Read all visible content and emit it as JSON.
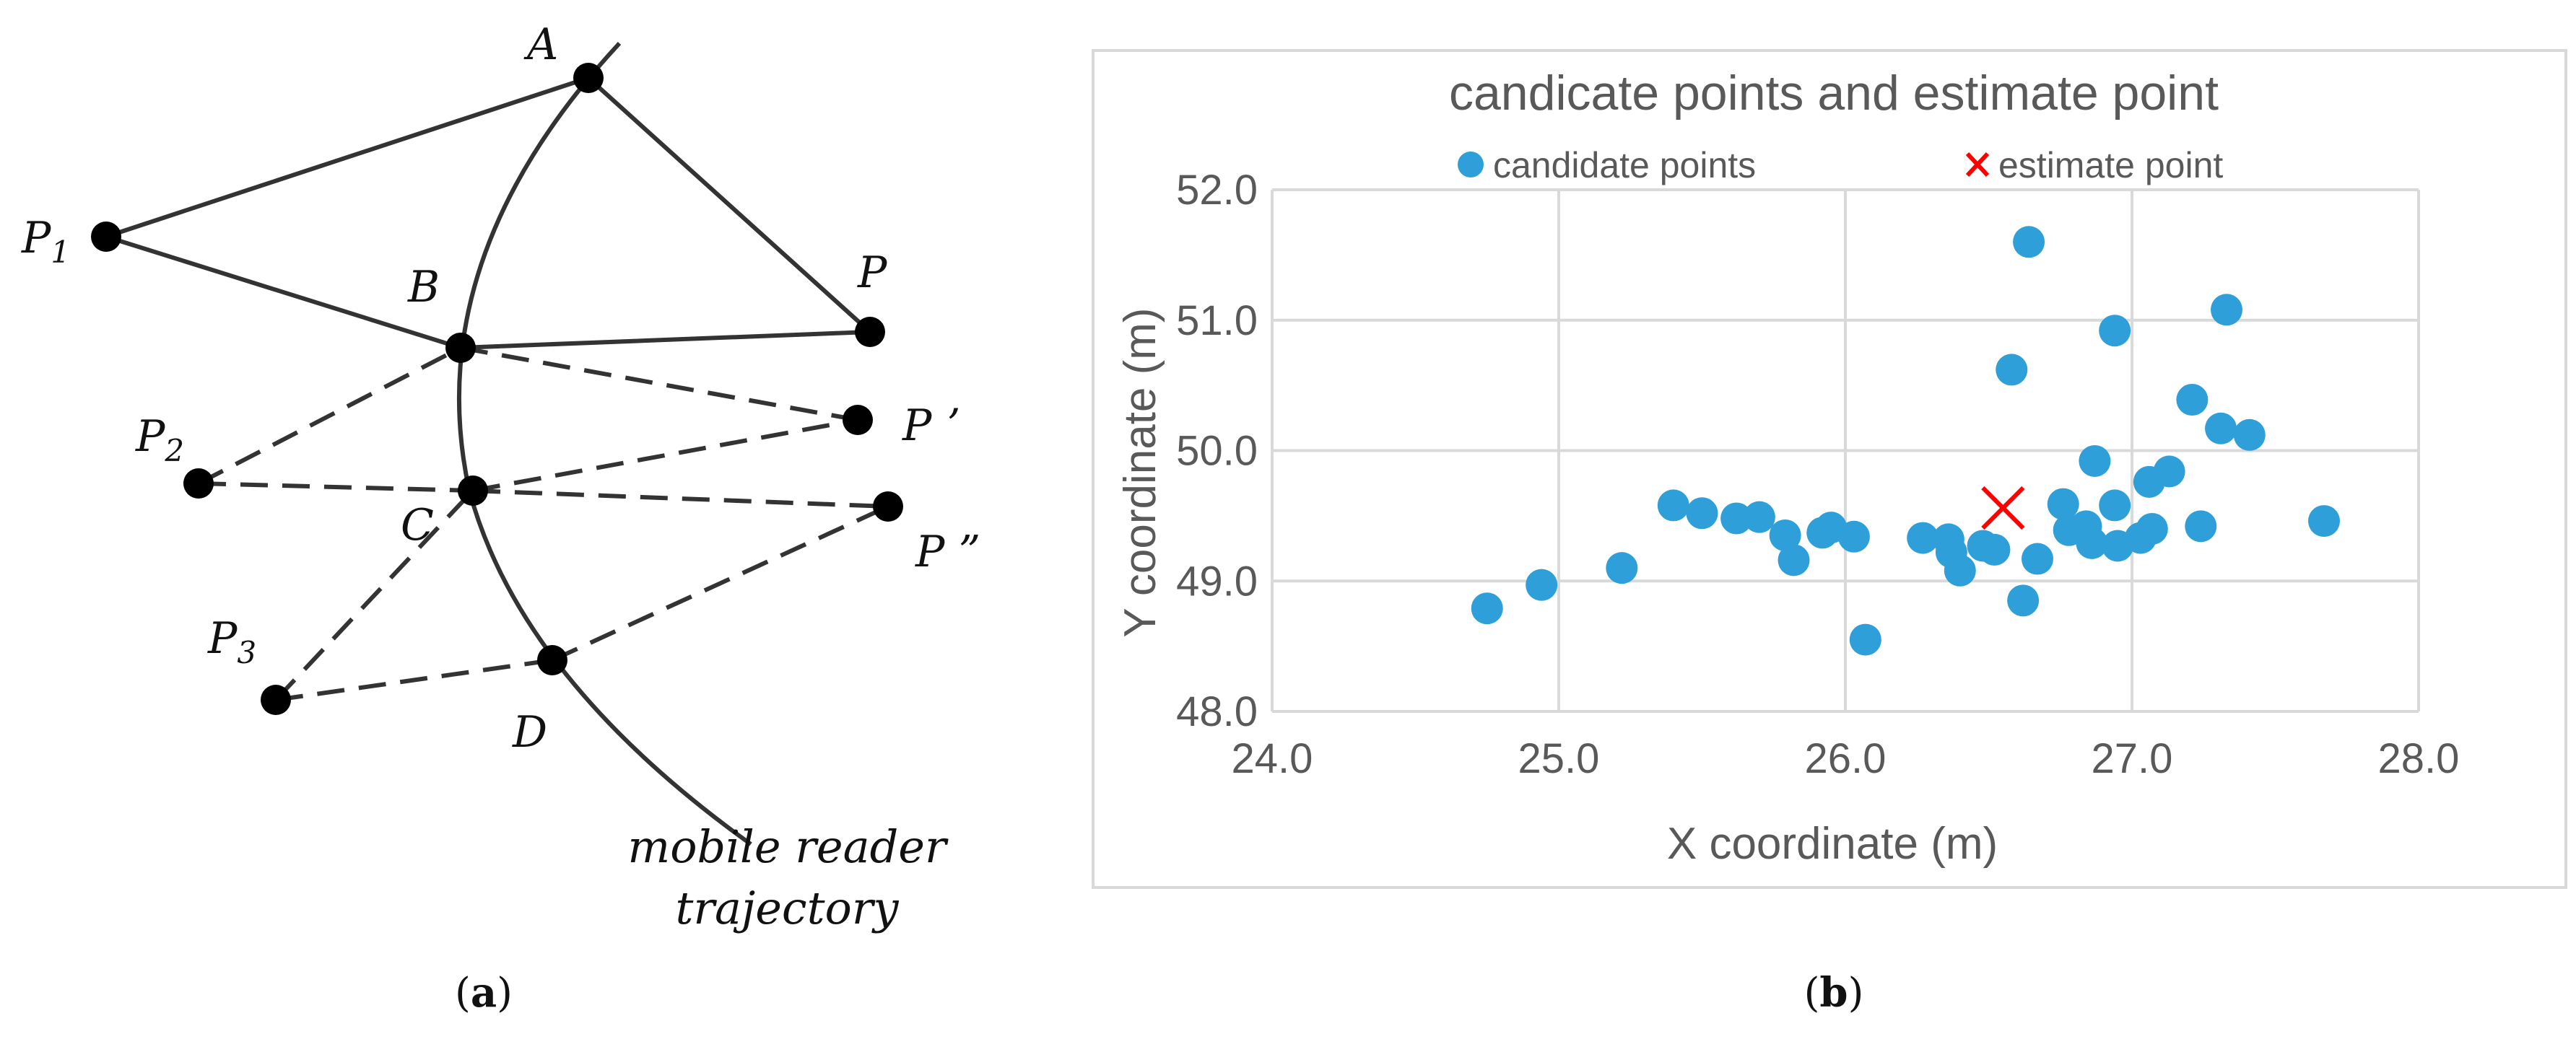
{
  "diagram": {
    "trajectory_label_line1": "mobile reader",
    "trajectory_label_line2": "trajectory",
    "caption": {
      "open": "(",
      "letter": "a",
      "close": ")"
    },
    "points": {
      "A": "A",
      "B": "B",
      "C": "C",
      "D": "D",
      "P1": {
        "base": "P",
        "sub": "1"
      },
      "P2": {
        "base": "P",
        "sub": "2"
      },
      "P3": {
        "base": "P",
        "sub": "3"
      },
      "P": "P",
      "Pprime": "P ʼ",
      "Pdouble": "P ”"
    }
  },
  "chart_caption": {
    "open": "(",
    "letter": "b",
    "close": ")"
  },
  "chart_data": {
    "type": "scatter",
    "title": "candicate points and estimate point",
    "xlabel": "X coordinate (m)",
    "ylabel": "Y coordinate (m)",
    "xlim": [
      24.0,
      28.0
    ],
    "ylim": [
      48.0,
      52.0
    ],
    "xticks": [
      "24.0",
      "25.0",
      "26.0",
      "27.0",
      "28.0"
    ],
    "yticks": [
      "48.0",
      "49.0",
      "50.0",
      "51.0",
      "52.0"
    ],
    "grid": true,
    "legend_position": "top",
    "series": [
      {
        "name": "candidate points",
        "color": "#2E9FD8",
        "marker": "circle",
        "points": [
          [
            24.75,
            48.79
          ],
          [
            24.94,
            48.97
          ],
          [
            25.22,
            49.1
          ],
          [
            25.4,
            49.58
          ],
          [
            25.5,
            49.52
          ],
          [
            25.62,
            49.48
          ],
          [
            25.7,
            49.49
          ],
          [
            25.79,
            49.35
          ],
          [
            25.82,
            49.16
          ],
          [
            25.92,
            49.37
          ],
          [
            25.95,
            49.41
          ],
          [
            26.03,
            49.34
          ],
          [
            26.07,
            48.55
          ],
          [
            26.27,
            49.33
          ],
          [
            26.36,
            49.32
          ],
          [
            26.37,
            49.22
          ],
          [
            26.4,
            49.08
          ],
          [
            26.48,
            49.27
          ],
          [
            26.52,
            49.24
          ],
          [
            26.58,
            50.62
          ],
          [
            26.62,
            48.85
          ],
          [
            26.64,
            51.6
          ],
          [
            26.67,
            49.17
          ],
          [
            26.76,
            49.59
          ],
          [
            26.78,
            49.39
          ],
          [
            26.84,
            49.42
          ],
          [
            26.86,
            49.29
          ],
          [
            26.87,
            49.92
          ],
          [
            26.94,
            49.58
          ],
          [
            26.94,
            50.92
          ],
          [
            26.95,
            49.27
          ],
          [
            27.03,
            49.33
          ],
          [
            27.06,
            49.76
          ],
          [
            27.07,
            49.4
          ],
          [
            27.13,
            49.84
          ],
          [
            27.21,
            50.39
          ],
          [
            27.24,
            49.42
          ],
          [
            27.31,
            50.17
          ],
          [
            27.33,
            51.08
          ],
          [
            27.41,
            50.12
          ],
          [
            27.67,
            49.46
          ]
        ]
      },
      {
        "name": "estimate point",
        "color": "#FF0000",
        "marker": "x",
        "points": [
          [
            26.55,
            49.56
          ]
        ]
      }
    ]
  }
}
